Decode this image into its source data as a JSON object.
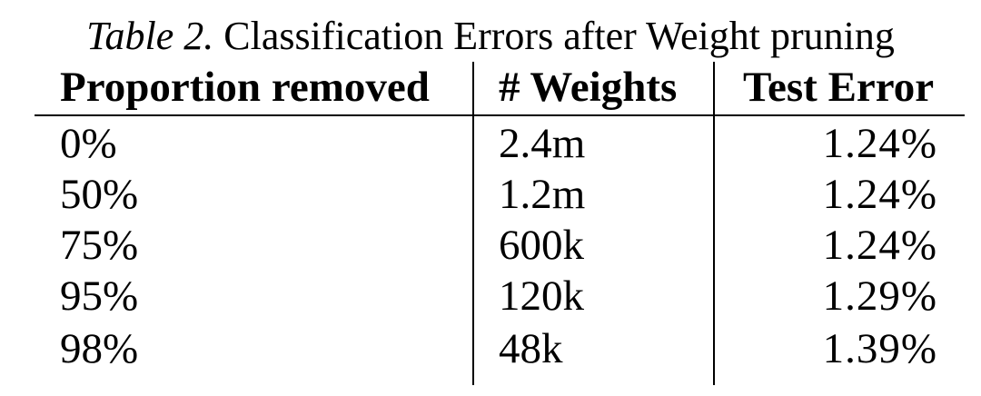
{
  "caption": {
    "label": "Table 2.",
    "text": "Classification Errors after Weight pruning"
  },
  "table": {
    "headers": [
      "Proportion removed",
      "# Weights",
      "Test Error"
    ],
    "rows": [
      [
        "0%",
        "2.4m",
        "1.24%"
      ],
      [
        "50%",
        "1.2m",
        "1.24%"
      ],
      [
        "75%",
        "600k",
        "1.24%"
      ],
      [
        "95%",
        "120k",
        "1.29%"
      ],
      [
        "98%",
        "48k",
        "1.39%"
      ]
    ]
  }
}
